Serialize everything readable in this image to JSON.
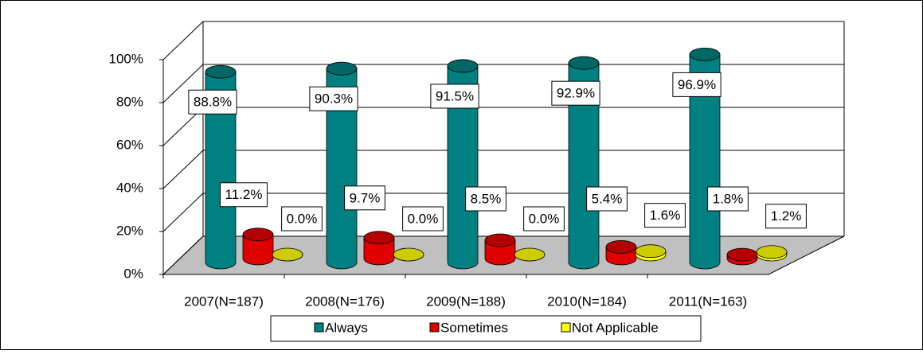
{
  "chart_data": {
    "type": "bar3d",
    "categories": [
      "2007(N=187)",
      "2008(N=176)",
      "2009(N=188)",
      "2010(N=184)",
      "2011(N=163)"
    ],
    "series": [
      {
        "name": "Always",
        "color": "#008080",
        "values": [
          88.8,
          90.3,
          91.5,
          92.9,
          96.9
        ],
        "value_labels": [
          "88.8%",
          "90.3%",
          "91.5%",
          "92.9%",
          "96.9%"
        ]
      },
      {
        "name": "Sometimes",
        "color": "#e00000",
        "values": [
          11.2,
          9.7,
          8.5,
          5.4,
          1.8
        ],
        "value_labels": [
          "11.2%",
          "9.7%",
          "8.5%",
          "5.4%",
          "1.8%"
        ]
      },
      {
        "name": "Not Applicable",
        "color": "#ffff00",
        "values": [
          0.0,
          0.0,
          0.0,
          1.6,
          1.2
        ],
        "value_labels": [
          "0.0%",
          "0.0%",
          "0.0%",
          "1.6%",
          "1.2%"
        ]
      }
    ],
    "ylim": [
      0,
      100
    ],
    "yticks": [
      {
        "value": 0,
        "label": "0%"
      },
      {
        "value": 20,
        "label": "20%"
      },
      {
        "value": 40,
        "label": "40%"
      },
      {
        "value": 60,
        "label": "60%"
      },
      {
        "value": 80,
        "label": "80%"
      },
      {
        "value": 100,
        "label": "100%"
      }
    ],
    "grid": true
  }
}
